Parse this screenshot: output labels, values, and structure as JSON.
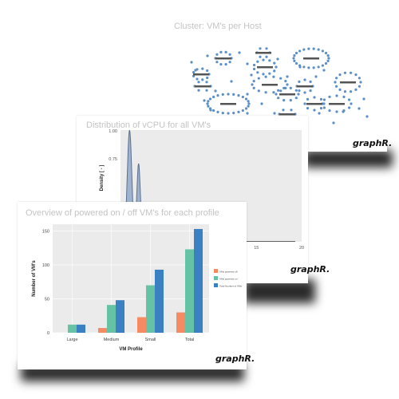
{
  "slides": {
    "cluster": {
      "title": "Cluster: VM's per Host",
      "brand": "graphR."
    },
    "vcpu": {
      "title": "Distribution of vCPU for all VM's",
      "brand": "graphR."
    },
    "profile": {
      "title": "Overview of powered on / off VM's for each profile",
      "brand": "graphR."
    }
  },
  "chart_data": [
    {
      "type": "area",
      "title": "Distribution of vCPU for all VM's",
      "ylabel": "Density [ - ]",
      "x_ticks_visible": [
        "15",
        "20"
      ],
      "y_ticks": [
        "1.00",
        "0.75"
      ],
      "xlim": [
        0,
        20
      ],
      "ylim": [
        0,
        1.0
      ],
      "series": [
        {
          "x": [
            1,
            2,
            4
          ],
          "values": [
            1.0,
            0.7,
            0.0
          ]
        }
      ],
      "colors": {
        "fill": "#9db3cf",
        "stroke": "#5a6f8f"
      }
    },
    {
      "type": "bar",
      "title": "Overview of powered on / off VM's for each profile",
      "xlabel": "VM Profile",
      "ylabel": "Number of VM's",
      "categories": [
        "Large",
        "Medium",
        "Small",
        "Total"
      ],
      "ylim": [
        0,
        160
      ],
      "y_ticks": [
        0,
        50,
        100,
        150
      ],
      "legend_position": "right",
      "series": [
        {
          "name": "VMs powered off",
          "color": "#f58a63",
          "values": [
            0,
            7,
            23,
            30
          ]
        },
        {
          "name": "VMs powered on",
          "color": "#66c2a5",
          "values": [
            12,
            41,
            70,
            123
          ]
        },
        {
          "name": "Total Number of VMs",
          "color": "#3a80c2",
          "values": [
            12,
            48,
            93,
            153
          ]
        }
      ]
    }
  ]
}
